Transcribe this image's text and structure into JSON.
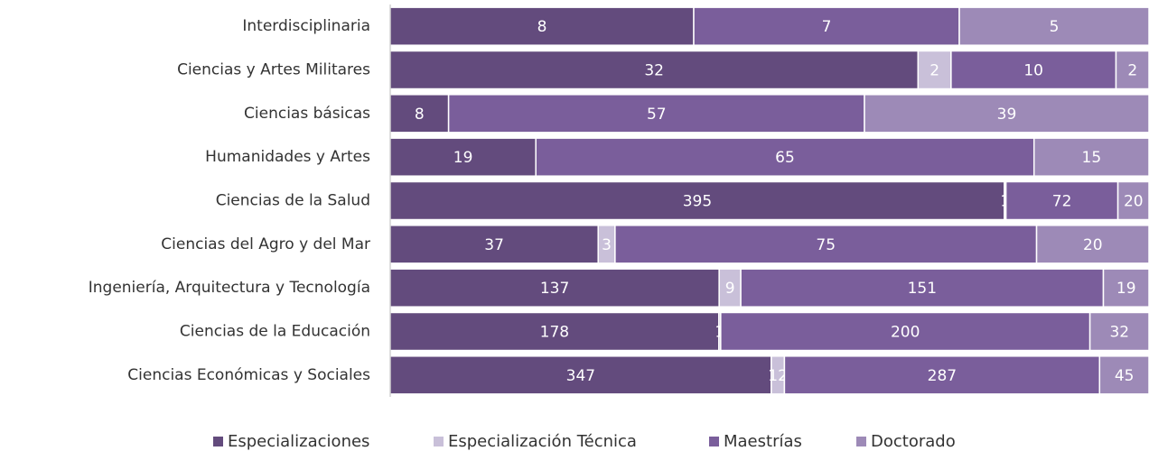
{
  "chart_data": {
    "type": "stacked-bar-100",
    "categories": [
      "Interdisciplinaria",
      "Ciencias y Artes Militares",
      "Ciencias básicas",
      "Humanidades y Artes",
      "Ciencias de la Salud",
      "Ciencias del Agro y del Mar",
      "Ingeniería, Arquitectura y Tecnología",
      "Ciencias de la Educación",
      "Ciencias Económicas y Sociales"
    ],
    "series": [
      {
        "name": "Especializaciones",
        "color": "#634b7d",
        "values": [
          8,
          32,
          8,
          19,
          395,
          37,
          137,
          178,
          347
        ]
      },
      {
        "name": "Especialización Técnica",
        "color": "#c9c0d9",
        "values": [
          null,
          2,
          null,
          null,
          1,
          3,
          9,
          1,
          12
        ]
      },
      {
        "name": "Maestrías",
        "color": "#7a5e9b",
        "values": [
          7,
          10,
          57,
          65,
          72,
          75,
          151,
          200,
          287
        ]
      },
      {
        "name": "Doctorado",
        "color": "#9d8ab7",
        "values": [
          5,
          2,
          39,
          15,
          20,
          20,
          19,
          32,
          45
        ]
      }
    ],
    "legend": "bottom"
  }
}
